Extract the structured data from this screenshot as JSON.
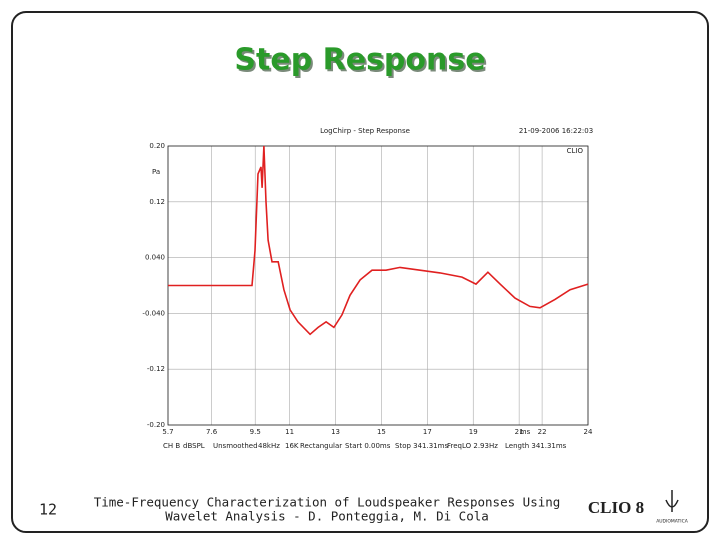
{
  "slide": {
    "title": "Step Response",
    "page_number": "12",
    "footer": [
      "Time-Frequency Characterization of Loudspeaker Responses Using",
      "Wavelet Analysis - D. Ponteggia, M. Di Cola"
    ],
    "logo": "CLIO 8",
    "logo_sub": "AUDIOMATICA"
  },
  "chart_data": {
    "type": "line",
    "title": "LogChirp - Step Response",
    "timestamp": "21-09-2006 16:22:03",
    "brand": "CLIO",
    "y_label": "Pa",
    "x_label": "ms",
    "annotations": [
      "CH B",
      "dBSPL",
      "Unsmoothed",
      "48kHz",
      "16K",
      "Rectangular",
      "Start 0.00ms",
      "Stop 341.31ms",
      "FreqLO 2.93Hz",
      "Length 341.31ms"
    ],
    "x": [
      5.7,
      9.36,
      9.49,
      9.62,
      9.75,
      9.8,
      9.88,
      9.97,
      10.06,
      10.23,
      10.5,
      10.75,
      11.02,
      11.36,
      11.89,
      12.24,
      12.59,
      12.93,
      13.28,
      13.63,
      14.07,
      14.59,
      15.2,
      15.81,
      16.68,
      17.55,
      18.51,
      19.12,
      19.64,
      20.17,
      20.82,
      21.47,
      21.91,
      22.56,
      23.22,
      24
    ],
    "series": [
      {
        "name": "Step Response",
        "color": "#e02020",
        "values": [
          0.0,
          0.0,
          0.05,
          0.16,
          0.17,
          0.14,
          0.2,
          0.12,
          0.065,
          0.034,
          0.034,
          -0.006,
          -0.035,
          -0.052,
          -0.07,
          -0.06,
          -0.052,
          -0.06,
          -0.042,
          -0.014,
          0.008,
          0.022,
          0.022,
          0.026,
          0.022,
          0.018,
          0.012,
          0.002,
          0.019,
          0.002,
          -0.018,
          -0.03,
          -0.032,
          -0.02,
          -0.006,
          0.002
        ]
      }
    ],
    "xlim": [
      5.7,
      24
    ],
    "xticks": [
      5.7,
      7.6,
      9.5,
      11,
      13,
      15,
      17,
      19,
      21,
      22,
      24
    ],
    "ylim": [
      -0.2,
      0.2
    ],
    "yticks": [
      {
        "value": -0.2,
        "label": "-0.20"
      },
      -0.12,
      {
        "value": -0.04,
        "label": "-0.040"
      },
      {
        "value": 0.04,
        "label": "0.040"
      },
      0.12,
      {
        "value": 0.2,
        "label": "0.20"
      }
    ],
    "grid": true
  }
}
